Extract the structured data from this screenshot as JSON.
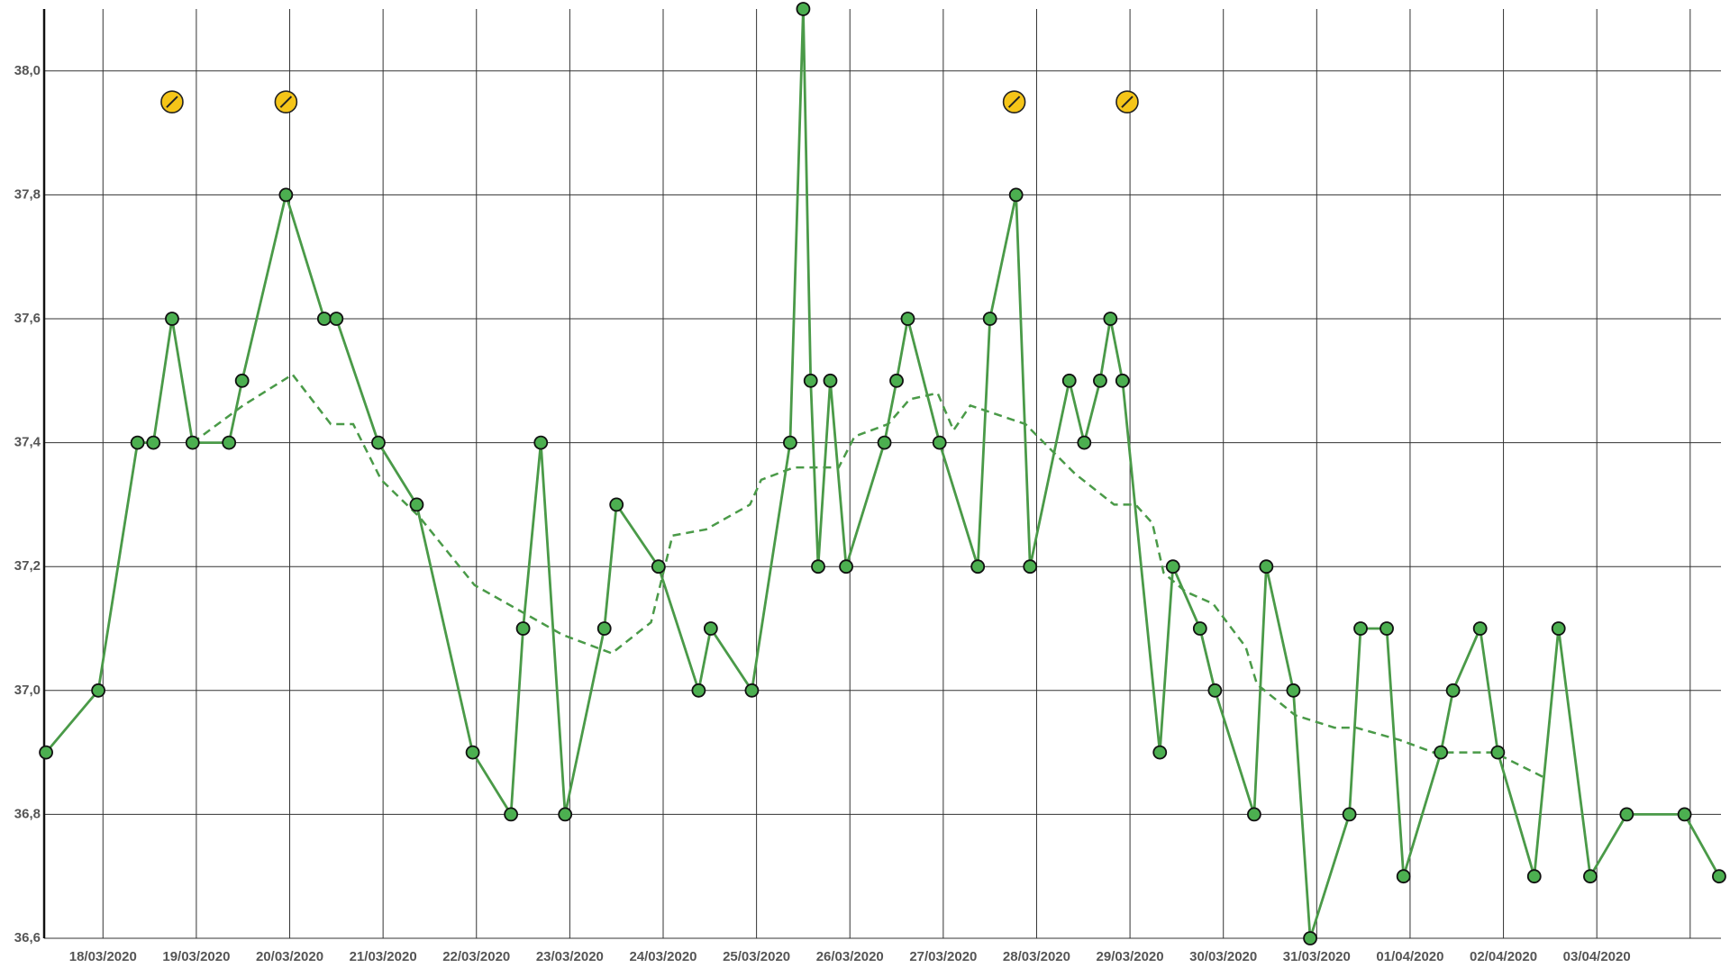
{
  "chart_data": {
    "type": "line",
    "x": [
      -0.61,
      -0.05,
      0.37,
      0.54,
      0.74,
      0.96,
      1.35,
      1.49,
      1.96,
      2.37,
      2.5,
      2.95,
      3.36,
      3.96,
      4.37,
      4.5,
      4.69,
      4.95,
      5.37,
      5.5,
      5.95,
      6.38,
      6.51,
      6.95,
      7.36,
      7.5,
      7.58,
      7.66,
      7.79,
      7.96,
      8.37,
      8.5,
      8.62,
      8.96,
      9.37,
      9.5,
      9.78,
      9.93,
      10.35,
      10.51,
      10.68,
      10.79,
      10.92,
      11.32,
      11.46,
      11.75,
      11.91,
      12.33,
      12.46,
      12.75,
      12.93,
      13.35,
      13.47,
      13.75,
      13.93,
      14.33,
      14.46,
      14.75,
      14.94,
      15.33,
      15.59,
      15.93,
      16.32,
      16.94,
      17.31
    ],
    "values": [
      36.9,
      37.0,
      37.4,
      37.4,
      37.6,
      37.4,
      37.4,
      37.5,
      37.8,
      37.6,
      37.6,
      37.4,
      37.3,
      36.9,
      36.8,
      37.1,
      37.4,
      36.8,
      37.1,
      37.3,
      37.2,
      37.0,
      37.1,
      37.0,
      37.4,
      38.1,
      37.5,
      37.2,
      37.5,
      37.2,
      37.4,
      37.5,
      37.6,
      37.4,
      37.2,
      37.6,
      37.8,
      37.2,
      37.5,
      37.4,
      37.5,
      37.6,
      37.5,
      36.9,
      37.2,
      37.1,
      37.0,
      36.8,
      37.2,
      37.0,
      36.6,
      36.8,
      37.1,
      37.1,
      36.7,
      36.9,
      37.0,
      37.1,
      36.9,
      36.7,
      37.1,
      36.7,
      36.8,
      36.8,
      36.7
    ],
    "color": "#4a9a48",
    "trend": {
      "x": [
        0.96,
        1.5,
        2.03,
        2.44,
        2.68,
        2.98,
        3.39,
        3.98,
        4.45,
        4.92,
        5.45,
        5.87,
        6.1,
        6.46,
        6.93,
        7.05,
        7.4,
        7.88,
        8.05,
        8.41,
        8.64,
        8.94,
        9.11,
        9.29,
        9.88,
        10.41,
        10.83,
        11.06,
        11.24,
        11.36,
        11.59,
        11.89,
        12.24,
        12.36,
        12.77,
        13.19,
        13.42,
        13.89,
        14.25,
        14.9,
        15.43
      ],
      "values": [
        37.4,
        37.46,
        37.51,
        37.43,
        37.43,
        37.34,
        37.28,
        37.17,
        37.13,
        37.09,
        37.06,
        37.11,
        37.25,
        37.26,
        37.3,
        37.34,
        37.36,
        37.36,
        37.41,
        37.43,
        37.47,
        37.48,
        37.42,
        37.46,
        37.43,
        37.35,
        37.3,
        37.3,
        37.27,
        37.19,
        37.16,
        37.14,
        37.07,
        37.01,
        36.96,
        36.94,
        36.94,
        36.92,
        36.9,
        36.9,
        36.86
      ]
    },
    "markers": {
      "x": [
        0.74,
        1.96,
        9.76,
        10.97
      ],
      "values": [
        37.95,
        37.95,
        37.95,
        37.95
      ],
      "color": "#f5c518"
    },
    "xlim": [
      -0.63,
      17.33
    ],
    "ylim": [
      36.6,
      38.1
    ],
    "xticks": [
      {
        "value": 0,
        "label": "18/03/2020"
      },
      {
        "value": 1,
        "label": "19/03/2020"
      },
      {
        "value": 2,
        "label": "20/03/2020"
      },
      {
        "value": 3,
        "label": "21/03/2020"
      },
      {
        "value": 4,
        "label": "22/03/2020"
      },
      {
        "value": 5,
        "label": "23/03/2020"
      },
      {
        "value": 6,
        "label": "24/03/2020"
      },
      {
        "value": 7,
        "label": "25/03/2020"
      },
      {
        "value": 8,
        "label": "26/03/2020"
      },
      {
        "value": 9,
        "label": "27/03/2020"
      },
      {
        "value": 10,
        "label": "28/03/2020"
      },
      {
        "value": 11,
        "label": "29/03/2020"
      },
      {
        "value": 12,
        "label": "30/03/2020"
      },
      {
        "value": 13,
        "label": "31/03/2020"
      },
      {
        "value": 14,
        "label": "01/04/2020"
      },
      {
        "value": 15,
        "label": "02/04/2020"
      },
      {
        "value": 16,
        "label": "03/04/2020"
      },
      {
        "value": 17,
        "label": null
      }
    ],
    "yticks": [
      {
        "value": 36.6,
        "label": "36,6"
      },
      {
        "value": 36.8,
        "label": "36,8"
      },
      {
        "value": 37.0,
        "label": "37,0"
      },
      {
        "value": 37.2,
        "label": "37,2"
      },
      {
        "value": 37.4,
        "label": "37,4"
      },
      {
        "value": 37.6,
        "label": "37,6"
      },
      {
        "value": 37.8,
        "label": "37,8"
      },
      {
        "value": 38.0,
        "label": "38,0"
      }
    ],
    "grid": true
  }
}
